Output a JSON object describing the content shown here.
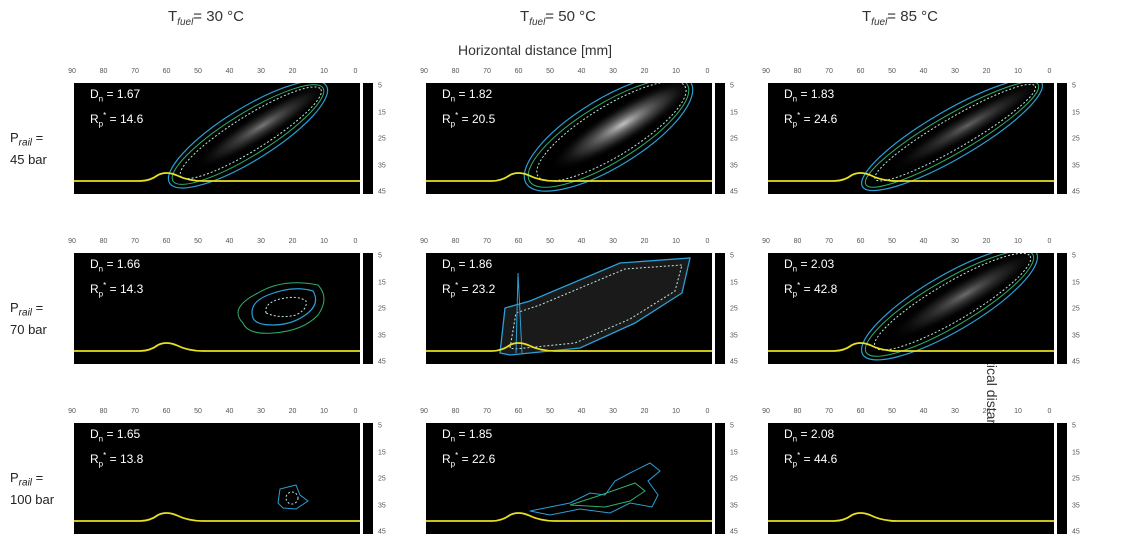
{
  "figure": {
    "x_axis_label": "Horizontal distance [mm]",
    "y_axis_label": "Vertical distance [mm]",
    "x_ticks": [
      "90",
      "80",
      "70",
      "60",
      "50",
      "40",
      "30",
      "20",
      "10",
      "0"
    ],
    "y_ticks": [
      "5",
      "15",
      "25",
      "35",
      "45"
    ],
    "columns": [
      {
        "prefix": "T",
        "sub": "fuel",
        "suffix": "= 30 °C"
      },
      {
        "prefix": "T",
        "sub": "fuel",
        "suffix": "= 50 °C"
      },
      {
        "prefix": "T",
        "sub": "fuel",
        "suffix": "= 85 °C"
      }
    ],
    "rows": [
      {
        "prefix": "P",
        "sub": "rail",
        "eq": " =",
        "value": "45 bar"
      },
      {
        "prefix": "P",
        "sub": "rail",
        "eq": " =",
        "value": "70 bar"
      },
      {
        "prefix": "P",
        "sub": "rail",
        "eq": " =",
        "value": "100 bar"
      }
    ],
    "panels": [
      [
        {
          "dn": "1.67",
          "rp": "14.6"
        },
        {
          "dn": "1.82",
          "rp": "20.5"
        },
        {
          "dn": "1.83",
          "rp": "24.6"
        }
      ],
      [
        {
          "dn": "1.66",
          "rp": "14.3"
        },
        {
          "dn": "1.86",
          "rp": "23.2"
        },
        {
          "dn": "2.03",
          "rp": "42.8"
        }
      ],
      [
        {
          "dn": "1.65",
          "rp": "13.8"
        },
        {
          "dn": "1.85",
          "rp": "22.6"
        },
        {
          "dn": "2.08",
          "rp": "44.6"
        }
      ]
    ],
    "dn_symbol": "D",
    "dn_sub": "n",
    "rp_symbol": "R",
    "rp_sub": "p",
    "rp_sup": "*",
    "colors": {
      "background": "#000000",
      "nozzle_line": "#e8e020",
      "contour_outer": "#2a9fd6",
      "contour_green": "#2fae6a",
      "contour_dotted": "#bfe8e0"
    }
  }
}
